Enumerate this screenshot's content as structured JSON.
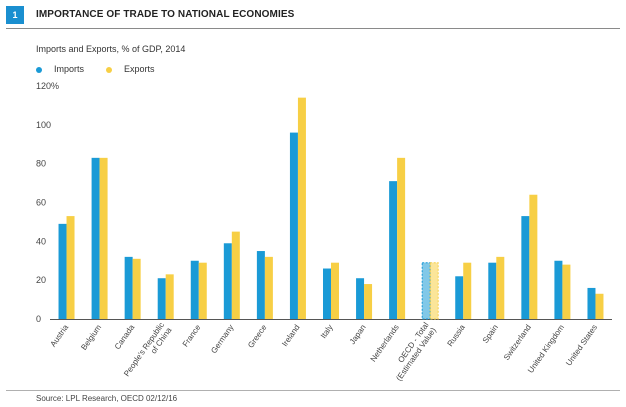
{
  "header": {
    "figure_number": "1",
    "title": "IMPORTANCE OF TRADE TO NATIONAL ECONOMIES"
  },
  "footer": {
    "source": "Source: LPL Research, OECD  02/12/16"
  },
  "colors": {
    "imports": "#1a9ad6",
    "exports": "#f7cf45",
    "accent": "#1a8fd0"
  },
  "chart_data": {
    "type": "bar",
    "title": "Imports and Exports, % of GDP, 2014",
    "xlabel": "",
    "ylabel": "",
    "ylim": [
      0,
      120
    ],
    "y_ticks": [
      0,
      20,
      40,
      60,
      80,
      100,
      120
    ],
    "y_tick_labels": [
      "0",
      "20",
      "40",
      "60",
      "80",
      "100",
      "120%"
    ],
    "grid": false,
    "legend_position": "top-left",
    "categories": [
      "Austria",
      "Belgium",
      "Canada",
      "People's Republic of China",
      "France",
      "Germany",
      "Greece",
      "Ireland",
      "Italy",
      "Japan",
      "Netherlands",
      "OECD - Total (Estimated Value)",
      "Russia",
      "Spain",
      "Switzerland",
      "United Kingdom",
      "United States"
    ],
    "category_labels": [
      [
        "Austria"
      ],
      [
        "Belgium"
      ],
      [
        "Canada"
      ],
      [
        "People's Republic",
        "of China"
      ],
      [
        "France"
      ],
      [
        "Germany"
      ],
      [
        "Greece"
      ],
      [
        "Ireland"
      ],
      [
        "Italy"
      ],
      [
        "Japan"
      ],
      [
        "Netherlands"
      ],
      [
        "OECD - Total",
        "(Estimated Value)"
      ],
      [
        "Russia"
      ],
      [
        "Spain"
      ],
      [
        "Switzerland"
      ],
      [
        "United Kingdom"
      ],
      [
        "United States"
      ]
    ],
    "estimated_category": "OECD - Total (Estimated Value)",
    "series": [
      {
        "name": "Imports",
        "values": [
          49,
          83,
          32,
          21,
          30,
          39,
          35,
          96,
          26,
          21,
          71,
          29,
          22,
          29,
          53,
          30,
          16
        ]
      },
      {
        "name": "Exports",
        "values": [
          53,
          83,
          31,
          23,
          29,
          45,
          32,
          114,
          29,
          18,
          83,
          29,
          29,
          32,
          64,
          28,
          13
        ]
      }
    ]
  }
}
